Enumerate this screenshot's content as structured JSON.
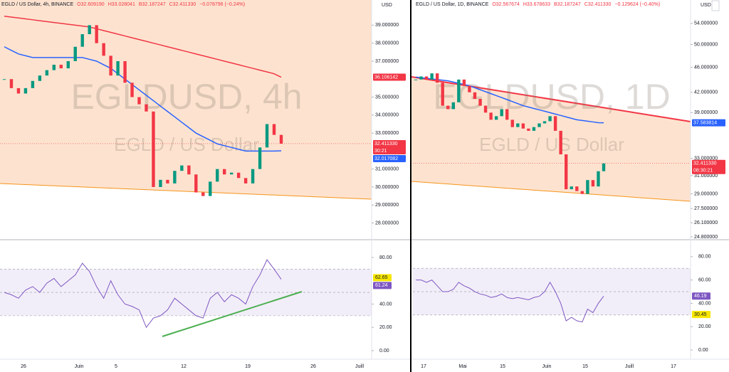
{
  "chart_data": [
    {
      "type": "candlestick",
      "header": {
        "symbol": "EGLD / US Dollar, 4h, BINANCE",
        "open": "O32.609190",
        "high": "H33.028041",
        "low": "B32.187247",
        "close": "C32.411330",
        "change": "−0.078796 (−0.24%)"
      },
      "currency": "USD",
      "watermark": {
        "title": "EGLDUSD, 4h",
        "subtitle": "EGLD / US Dollar"
      },
      "log": false,
      "ylim": [
        27.15,
        40.4
      ],
      "yticks": [
        {
          "value": 28,
          "label": "28.000000"
        },
        {
          "value": 29,
          "label": "29.000000"
        },
        {
          "value": 30,
          "label": "30.000000"
        },
        {
          "value": 31,
          "label": "31.000000"
        },
        {
          "value": 33,
          "label": "33.000000"
        },
        {
          "value": 34,
          "label": "34.000000"
        },
        {
          "value": 35,
          "label": "35.000000"
        },
        {
          "value": 37,
          "label": "37.000000"
        },
        {
          "value": 38,
          "label": "38.000000"
        },
        {
          "value": 39,
          "label": "39.000000"
        }
      ],
      "up_color": "#089981",
      "down_color": "#f23645",
      "values": [
        36.0,
        35.5,
        35.2,
        35.5,
        35.9,
        36.2,
        36.5,
        36.8,
        36.6,
        37.0,
        37.8,
        38.5,
        39.0,
        38.0,
        37.3,
        36.2,
        37.0,
        35.8,
        35.0,
        34.6,
        34.2,
        30.0,
        30.4,
        30.2,
        30.9,
        31.2,
        30.7,
        29.7,
        29.5,
        30.3,
        31.0,
        30.7,
        30.8,
        30.5,
        30.2,
        31.0,
        32.2,
        33.5,
        32.9,
        32.41133
      ],
      "ma": [
        {
          "color": "#f23645",
          "values": [
            39.5,
            39.45,
            39.4,
            39.35,
            39.3,
            39.25,
            39.2,
            39.15,
            39.1,
            39.05,
            39.0,
            38.95,
            38.9,
            38.8,
            38.7,
            38.6,
            38.5,
            38.4,
            38.3,
            38.2,
            38.1,
            38.0,
            37.9,
            37.8,
            37.7,
            37.6,
            37.5,
            37.4,
            37.3,
            37.2,
            37.1,
            37.0,
            36.9,
            36.8,
            36.7,
            36.6,
            36.5,
            36.4,
            36.3,
            36.106142
          ]
        },
        {
          "color": "#2962ff",
          "values": [
            37.8,
            37.6,
            37.4,
            37.3,
            37.2,
            37.2,
            37.2,
            37.2,
            37.2,
            37.2,
            37.2,
            37.2,
            37.1,
            37.0,
            36.8,
            36.6,
            36.3,
            36.0,
            35.7,
            35.4,
            35.1,
            34.8,
            34.5,
            34.2,
            33.9,
            33.6,
            33.3,
            33.0,
            32.8,
            32.6,
            32.4,
            32.3,
            32.2,
            32.1,
            32.0,
            32.0,
            32.0,
            32.0,
            32.0,
            32.017082
          ]
        }
      ],
      "tags": [
        {
          "value": 36.106142,
          "color": "#f23645"
        },
        {
          "value": 32.41133,
          "label": "32.411330",
          "countdown": "30:21",
          "color": "#f23645"
        },
        {
          "value": 32.017082,
          "color": "#2962ff"
        }
      ],
      "x_labels": [
        "26",
        "Juin",
        "5",
        "12",
        "19",
        "26",
        "Juill"
      ],
      "rsi": {
        "ylim": [
          -7.3,
          93.4
        ],
        "yticks": [
          {
            "value": 0,
            "label": "0.00"
          },
          {
            "value": 20,
            "label": "20.00"
          },
          {
            "value": 40,
            "label": "40.00"
          },
          {
            "value": 80,
            "label": "80.00"
          }
        ],
        "band": [
          30,
          70
        ],
        "mid": 50,
        "color": "#7e57c2",
        "values": [
          50,
          48,
          45,
          52,
          55,
          50,
          58,
          62,
          55,
          60,
          65,
          75,
          68,
          55,
          45,
          60,
          48,
          40,
          38,
          35,
          20,
          28,
          30,
          35,
          45,
          40,
          35,
          30,
          28,
          45,
          50,
          42,
          48,
          45,
          40,
          55,
          65,
          78,
          70,
          61.24
        ],
        "tags": [
          {
            "value": 62.65,
            "color": "#f7e600"
          },
          {
            "value": 61.24,
            "color": "#7e57c2"
          }
        ]
      }
    },
    {
      "type": "candlestick",
      "header": {
        "symbol": "EGLD / US Dollar, 1D, BINANCE",
        "open": "O32.567674",
        "high": "H33.678633",
        "low": "B32.187247",
        "close": "C32.411330",
        "change": "−0.129624 (−0.40%)"
      },
      "currency": "USD",
      "watermark": {
        "title": "EGLDUSD, 1D",
        "subtitle": "EGLD / US Dollar"
      },
      "log": true,
      "ylim": [
        24.67,
        58.8
      ],
      "yticks": [
        {
          "value": 24.8,
          "label": "24.800000"
        },
        {
          "value": 26.1,
          "label": "26.100000"
        },
        {
          "value": 27.5,
          "label": "27.500000"
        },
        {
          "value": 29,
          "label": "29.000000"
        },
        {
          "value": 31,
          "label": "31.000000"
        },
        {
          "value": 33,
          "label": "33.000000"
        },
        {
          "value": 39,
          "label": "39.000000"
        },
        {
          "value": 42,
          "label": "42.000000"
        },
        {
          "value": 46,
          "label": "46.000000"
        },
        {
          "value": 50,
          "label": "50.000000"
        },
        {
          "value": 54,
          "label": "54.000000"
        }
      ],
      "up_color": "#089981",
      "down_color": "#f23645",
      "values": [
        44.0,
        44.5,
        44.0,
        45.0,
        43.5,
        40.0,
        39.5,
        40.5,
        44.0,
        43.0,
        42.0,
        41.0,
        40.0,
        39.0,
        38.0,
        38.5,
        39.5,
        38.0,
        37.0,
        37.5,
        36.8,
        36.5,
        37.0,
        37.5,
        37.8,
        38.5,
        36.5,
        33.5,
        29.5,
        29.8,
        29.3,
        29.0,
        30.5,
        29.8,
        31.5,
        32.41133
      ],
      "ma": [
        {
          "color": "#2962ff",
          "values": [
            44.4,
            44.3,
            44.2,
            44.1,
            44.0,
            43.9,
            43.8,
            43.6,
            43.4,
            43.2,
            43.0,
            42.7,
            42.4,
            42.1,
            41.8,
            41.5,
            41.2,
            40.9,
            40.6,
            40.3,
            40.0,
            39.8,
            39.6,
            39.4,
            39.2,
            39.0,
            38.8,
            38.6,
            38.4,
            38.2,
            38.0,
            37.9,
            37.8,
            37.7,
            37.6,
            37.583814
          ]
        }
      ],
      "tags": [
        {
          "value": 37.583814,
          "color": "#2962ff"
        },
        {
          "value": 32.41133,
          "label": "32.411330",
          "countdown": "08:30:21",
          "color": "#f23645"
        }
      ],
      "x_labels": [
        "17",
        "Mai",
        "15",
        "Juin",
        "15",
        "Juill",
        "17"
      ],
      "rsi": {
        "ylim": [
          -7.9,
          92.7
        ],
        "yticks": [
          {
            "value": 0,
            "label": "0.00"
          },
          {
            "value": 20,
            "label": "20.00"
          },
          {
            "value": 40,
            "label": "40.00"
          },
          {
            "value": 60,
            "label": "60.00"
          },
          {
            "value": 80,
            "label": "80.00"
          }
        ],
        "band": [
          30,
          70
        ],
        "mid": 50,
        "color": "#7e57c2",
        "values": [
          60,
          60,
          58,
          60,
          55,
          50,
          50,
          52,
          58,
          55,
          53,
          50,
          48,
          47,
          45,
          46,
          48,
          45,
          44,
          45,
          44,
          43,
          45,
          46,
          50,
          58,
          50,
          40,
          25,
          28,
          25,
          24,
          35,
          32,
          40,
          46.19
        ],
        "tags": [
          {
            "value": 46.19,
            "color": "#7e57c2"
          },
          {
            "value": 30.45,
            "color": "#f7e600"
          }
        ]
      }
    }
  ]
}
